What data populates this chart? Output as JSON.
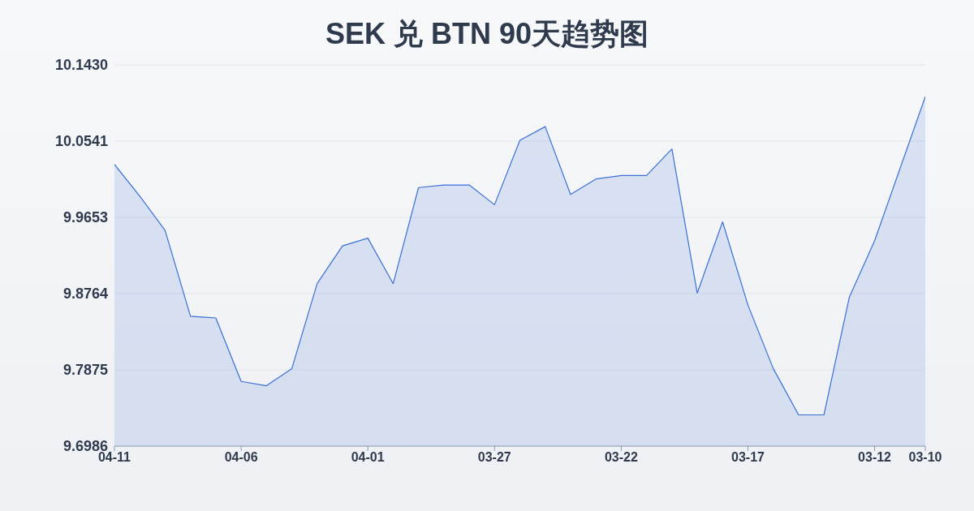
{
  "chart_data": {
    "type": "area",
    "title": "SEK 兑 BTN 90天趋势图",
    "categories": [
      "04-11",
      null,
      null,
      null,
      null,
      "04-06",
      null,
      null,
      null,
      null,
      "04-01",
      null,
      null,
      null,
      null,
      "03-27",
      null,
      null,
      null,
      null,
      "03-22",
      null,
      null,
      null,
      null,
      "03-17",
      null,
      null,
      null,
      null,
      "03-12",
      null,
      "03-10"
    ],
    "series": [
      {
        "color": "#3a6fd8",
        "values": [
          10.027,
          9.99,
          9.95,
          9.85,
          9.848,
          9.774,
          9.769,
          9.789,
          9.888,
          9.932,
          9.941,
          9.888,
          10.0,
          10.003,
          10.003,
          9.98,
          10.055,
          10.071,
          9.992,
          10.01,
          10.014,
          10.014,
          10.045,
          9.877,
          9.96,
          9.863,
          9.789,
          9.735,
          9.735,
          9.872,
          9.938,
          10.022,
          10.106
        ]
      }
    ],
    "ylim": [
      9.6986,
      10.143
    ],
    "yticks": [
      {
        "value": 9.6986,
        "label": "9.6986"
      },
      {
        "value": 9.7875,
        "label": "9.7875"
      },
      {
        "value": 9.8764,
        "label": "9.8764"
      },
      {
        "value": 9.9653,
        "label": "9.9653"
      },
      {
        "value": 10.0541,
        "label": "10.0541"
      },
      {
        "value": 10.143,
        "label": "10.1430"
      }
    ],
    "grid": "y",
    "legend": false,
    "marker": "none",
    "line_style": "solid"
  }
}
